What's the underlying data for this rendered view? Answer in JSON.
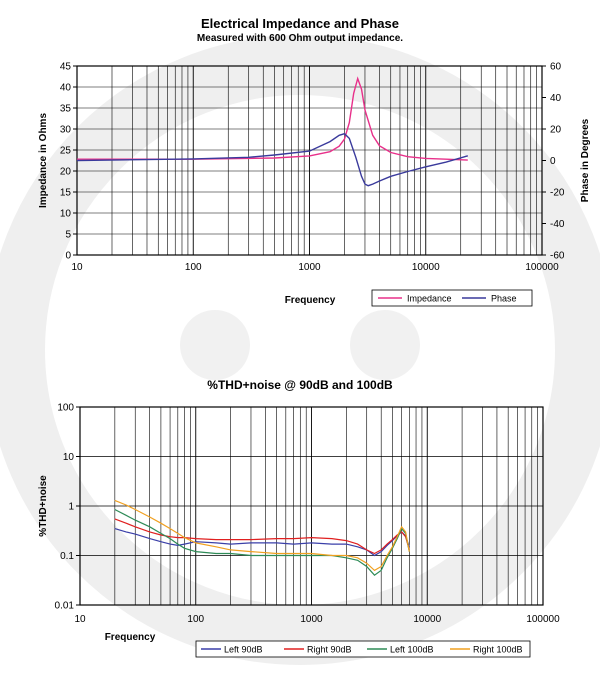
{
  "chart_data": [
    {
      "type": "line",
      "title": "Electrical Impedance and Phase",
      "subtitle": "Measured with 600 Ohm output impedance.",
      "xlabel": "Frequency",
      "ylabel": "Impedance in Ohms",
      "y2label": "Phase in Degrees",
      "xscale": "log",
      "xlim": [
        10,
        100000
      ],
      "ylim": [
        0,
        45
      ],
      "y2lim": [
        -60,
        60
      ],
      "x_ticks": [
        "10",
        "100",
        "1000",
        "10000",
        "100000"
      ],
      "y_ticks": [
        "0",
        "5",
        "10",
        "15",
        "20",
        "25",
        "30",
        "35",
        "40",
        "45"
      ],
      "y2_ticks": [
        "-60",
        "-40",
        "-20",
        "0",
        "20",
        "40",
        "60"
      ],
      "grid": true,
      "legend_position": "bottom-right",
      "series": [
        {
          "name": "Impedance",
          "axis": "left",
          "color": "#e8308a",
          "x": [
            10,
            100,
            500,
            1000,
            1500,
            1800,
            2000,
            2200,
            2400,
            2600,
            2800,
            3000,
            3500,
            4000,
            5000,
            7000,
            10000,
            15000,
            23000
          ],
          "y": [
            22.8,
            22.8,
            23.1,
            23.6,
            24.6,
            25.9,
            27.6,
            31.5,
            38.5,
            42.0,
            39.5,
            34.5,
            28.5,
            26.0,
            24.4,
            23.4,
            23.0,
            22.8,
            22.6
          ]
        },
        {
          "name": "Phase",
          "axis": "right",
          "color": "#3a3a9c",
          "x": [
            10,
            100,
            300,
            500,
            1000,
            1500,
            1800,
            2000,
            2200,
            2500,
            2800,
            3000,
            3200,
            3500,
            4000,
            5000,
            7000,
            10000,
            15000,
            23000
          ],
          "y": [
            0,
            1,
            2,
            3.5,
            6,
            12,
            16,
            17,
            14,
            2,
            -10,
            -15,
            -16,
            -15,
            -13,
            -10,
            -7,
            -4,
            -1,
            3
          ]
        }
      ]
    },
    {
      "type": "line",
      "title": "%THD+noise @ 90dB and 100dB",
      "xlabel": "Frequency",
      "ylabel": "%THD+noise",
      "xscale": "log",
      "yscale": "log",
      "xlim": [
        10,
        100000
      ],
      "ylim": [
        0.01,
        100
      ],
      "x_ticks": [
        "10",
        "100",
        "1000",
        "10000",
        "100000"
      ],
      "y_ticks": [
        "0.01",
        "0.1",
        "1",
        "10",
        "100"
      ],
      "grid": true,
      "legend_position": "bottom",
      "series": [
        {
          "name": "Left 90dB",
          "color": "#3a3fa8",
          "x": [
            20,
            25,
            30,
            40,
            50,
            60,
            70,
            80,
            100,
            150,
            200,
            300,
            500,
            700,
            1000,
            1500,
            2000,
            2500,
            3000,
            3500,
            4000,
            4500,
            5000,
            5500,
            6000,
            6500,
            7000
          ],
          "y": [
            0.35,
            0.3,
            0.27,
            0.22,
            0.19,
            0.17,
            0.16,
            0.17,
            0.19,
            0.18,
            0.17,
            0.18,
            0.18,
            0.17,
            0.18,
            0.17,
            0.17,
            0.15,
            0.13,
            0.1,
            0.12,
            0.16,
            0.2,
            0.25,
            0.3,
            0.25,
            0.15
          ]
        },
        {
          "name": "Right 90dB",
          "color": "#e02020",
          "x": [
            20,
            25,
            30,
            40,
            50,
            60,
            70,
            80,
            100,
            150,
            200,
            300,
            500,
            700,
            1000,
            1500,
            2000,
            2500,
            3000,
            3500,
            4000,
            4500,
            5000,
            5500,
            6000,
            6500,
            7000
          ],
          "y": [
            0.55,
            0.45,
            0.38,
            0.3,
            0.26,
            0.24,
            0.23,
            0.23,
            0.22,
            0.21,
            0.21,
            0.21,
            0.22,
            0.22,
            0.23,
            0.22,
            0.2,
            0.17,
            0.13,
            0.11,
            0.13,
            0.17,
            0.21,
            0.26,
            0.3,
            0.24,
            0.13
          ]
        },
        {
          "name": "Left 100dB",
          "color": "#2e8b57",
          "x": [
            20,
            25,
            30,
            40,
            50,
            60,
            70,
            80,
            100,
            150,
            200,
            300,
            500,
            700,
            1000,
            1500,
            2000,
            2500,
            3000,
            3500,
            4000,
            4500,
            5000,
            5500,
            6000,
            6500,
            7000
          ],
          "y": [
            0.85,
            0.65,
            0.52,
            0.38,
            0.28,
            0.22,
            0.17,
            0.14,
            0.12,
            0.11,
            0.11,
            0.1,
            0.1,
            0.1,
            0.1,
            0.1,
            0.09,
            0.08,
            0.06,
            0.04,
            0.05,
            0.09,
            0.14,
            0.22,
            0.35,
            0.28,
            0.12
          ]
        },
        {
          "name": "Right 100dB",
          "color": "#f0a020",
          "x": [
            20,
            25,
            30,
            40,
            50,
            60,
            70,
            80,
            100,
            150,
            200,
            300,
            500,
            700,
            1000,
            1500,
            2000,
            2500,
            3000,
            3500,
            4000,
            4500,
            5000,
            5500,
            6000,
            6500,
            7000
          ],
          "y": [
            1.3,
            1.05,
            0.85,
            0.6,
            0.45,
            0.35,
            0.28,
            0.23,
            0.18,
            0.15,
            0.13,
            0.12,
            0.11,
            0.11,
            0.11,
            0.1,
            0.1,
            0.09,
            0.07,
            0.05,
            0.06,
            0.1,
            0.15,
            0.24,
            0.38,
            0.3,
            0.12
          ]
        }
      ]
    }
  ]
}
